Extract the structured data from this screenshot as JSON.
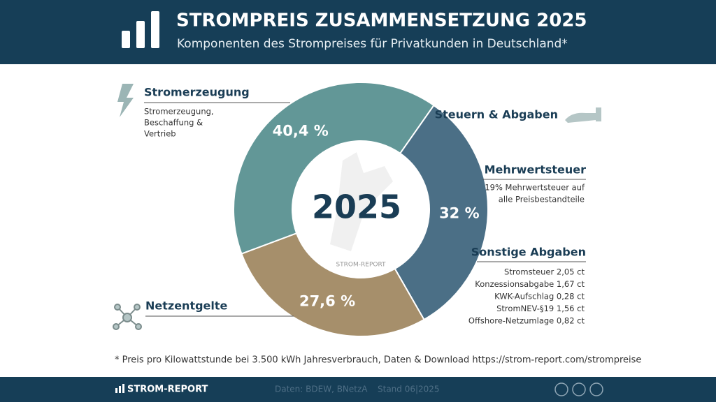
{
  "header": {
    "title": "STROMPREIS ZUSAMMENSETZUNG 2025",
    "subtitle": "Komponenten des Strompreises für Privatkunden in Deutschland*"
  },
  "chart_data": {
    "type": "donut",
    "categories": [
      "Steuern & Abgaben",
      "Netzentgelte",
      "Stromerzeugung"
    ],
    "values": [
      32,
      27.6,
      40.4
    ],
    "value_labels": [
      "32 %",
      "27,6 %",
      "40,4 %"
    ],
    "colors": [
      "#4b6f86",
      "#a68f6b",
      "#629797"
    ],
    "center_label": "2025",
    "watermark": "STROM-REPORT",
    "annotations": {
      "stromerzeugung_desc": [
        "Stromerzeugung,",
        "Beschaffung &",
        "Vertrieb"
      ],
      "mwst_title": "Mehrwertsteuer",
      "mwst_desc": [
        "19% Mehrwertsteuer auf",
        "alle Preisbestandteile"
      ],
      "sonstige_title": "Sonstige Abgaben",
      "sonstige_items": [
        "Stromsteuer 2,05 ct",
        "Konzessionsabgabe 1,67 ct",
        "KWK-Aufschlag 0,28 ct",
        "StromNEV-§19 1,56 ct",
        "Offshore-Netzumlage 0,82 ct"
      ]
    }
  },
  "footnote": "* Preis pro Kilowattstunde bei 3.500 kWh Jahresverbrauch, Daten & Download https://strom-report.com/strompreise",
  "footer": {
    "brand": "STROM-REPORT",
    "source": "Daten: BDEW, BNetzA",
    "date": "Stand 06|2025"
  }
}
